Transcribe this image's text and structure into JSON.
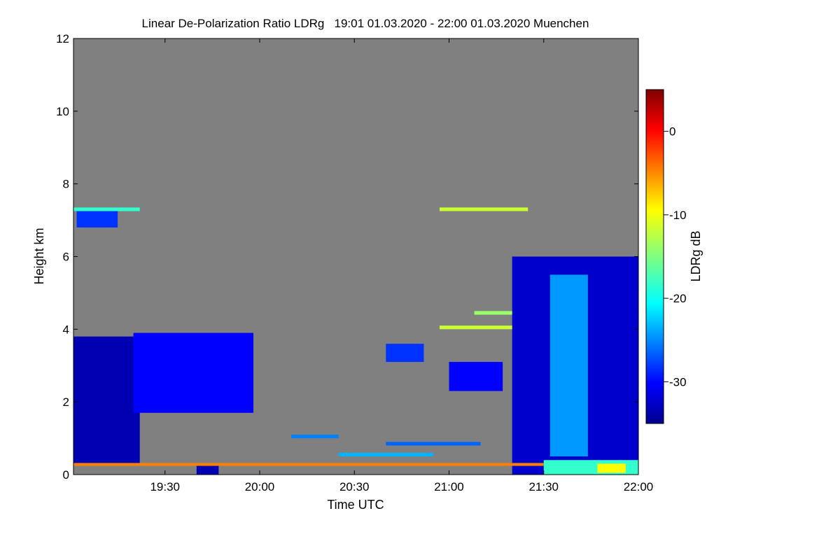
{
  "chart_data": {
    "type": "heatmap",
    "title": "Linear De-Polarization Ratio LDRg   19:01 01.03.2020 - 22:00 01.03.2020 Muenchen",
    "xlabel": "Time UTC",
    "ylabel": "Height km",
    "x_range": [
      "19:01",
      "22:00"
    ],
    "x_ticks": [
      "19:30",
      "20:00",
      "20:30",
      "21:00",
      "21:30",
      "22:00"
    ],
    "ylim": [
      0,
      12
    ],
    "y_ticks": [
      "0",
      "2",
      "4",
      "6",
      "8",
      "10",
      "12"
    ],
    "colorbar": {
      "label": "LDRg dB",
      "range": [
        -35,
        5
      ],
      "ticks": [
        "0",
        "-10",
        "-20",
        "-30"
      ],
      "colormap": "jet"
    },
    "no_data_color": "#808080",
    "features": [
      {
        "time_start": "19:01",
        "time_end": "19:22",
        "height_bottom": 0.3,
        "height_top": 3.8,
        "ldr_db": -33
      },
      {
        "time_start": "19:20",
        "time_end": "19:58",
        "height_bottom": 1.7,
        "height_top": 3.9,
        "ldr_db": -30
      },
      {
        "time_start": "19:02",
        "time_end": "19:15",
        "height_bottom": 6.8,
        "height_top": 7.3,
        "ldr_db": -28
      },
      {
        "time_start": "19:40",
        "time_end": "19:47",
        "height_bottom": 0.0,
        "height_top": 0.3,
        "ldr_db": -33
      },
      {
        "time_start": "20:40",
        "time_end": "20:52",
        "height_bottom": 3.1,
        "height_top": 3.6,
        "ldr_db": -28
      },
      {
        "time_start": "21:00",
        "time_end": "21:17",
        "height_bottom": 2.3,
        "height_top": 3.1,
        "ldr_db": -30
      },
      {
        "time_start": "21:20",
        "time_end": "22:00",
        "height_bottom": 0.0,
        "height_top": 6.0,
        "ldr_db": -32
      },
      {
        "time_start": "21:32",
        "time_end": "21:44",
        "height_bottom": 0.5,
        "height_top": 5.5,
        "ldr_db": -24
      },
      {
        "time_start": "21:30",
        "time_end": "22:00",
        "height_bottom": 0.0,
        "height_top": 0.4,
        "ldr_db": -18
      },
      {
        "time_start": "21:47",
        "time_end": "21:56",
        "height_bottom": 0.05,
        "height_top": 0.3,
        "ldr_db": -10
      },
      {
        "time_start": "19:01",
        "time_end": "21:30",
        "height_bottom": 0.24,
        "height_top": 0.32,
        "ldr_db": -5
      },
      {
        "time_start": "19:01",
        "time_end": "19:22",
        "height_bottom": 7.25,
        "height_top": 7.35,
        "ldr_db": -18
      },
      {
        "time_start": "20:57",
        "time_end": "21:25",
        "height_bottom": 7.25,
        "height_top": 7.35,
        "ldr_db": -12
      },
      {
        "time_start": "20:57",
        "time_end": "21:20",
        "height_bottom": 4.0,
        "height_top": 4.1,
        "ldr_db": -12
      },
      {
        "time_start": "21:08",
        "time_end": "21:20",
        "height_bottom": 4.4,
        "height_top": 4.5,
        "ldr_db": -14
      },
      {
        "time_start": "20:10",
        "time_end": "20:25",
        "height_bottom": 1.0,
        "height_top": 1.1,
        "ldr_db": -25
      },
      {
        "time_start": "20:40",
        "time_end": "21:10",
        "height_bottom": 0.8,
        "height_top": 0.9,
        "ldr_db": -26
      },
      {
        "time_start": "20:25",
        "time_end": "20:55",
        "height_bottom": 0.5,
        "height_top": 0.6,
        "ldr_db": -23
      }
    ]
  }
}
